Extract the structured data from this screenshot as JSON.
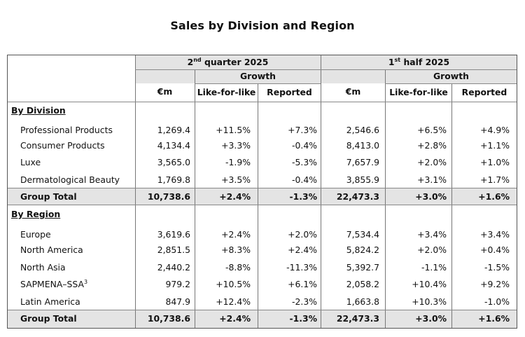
{
  "title": "Sales by Division and Region",
  "header": {
    "q2": {
      "pre": "2",
      "sup": "nd",
      "post": " quarter 2025"
    },
    "h1": {
      "pre": "1",
      "sup": "st",
      "post": " half 2025"
    },
    "growth": "Growth",
    "em": "€m",
    "lfl": "Like-for-like",
    "reported": "Reported"
  },
  "sections": [
    {
      "heading": "By Division",
      "rows": [
        {
          "label": "Professional Products",
          "v": [
            "1,269.4",
            "+11.5%",
            "+7.3%",
            "2,546.6",
            "+6.5%",
            "+4.9%"
          ]
        },
        {
          "label": "Consumer Products",
          "v": [
            "4,134.4",
            "+3.3%",
            "-0.4%",
            "8,413.0",
            "+2.8%",
            "+1.1%"
          ]
        },
        {
          "label": "Luxe",
          "v": [
            "3,565.0",
            "-1.9%",
            "-5.3%",
            "7,657.9",
            "+2.0%",
            "+1.0%"
          ]
        },
        {
          "label": "Dermatological Beauty",
          "v": [
            "1,769.8",
            "+3.5%",
            "-0.4%",
            "3,855.9",
            "+3.1%",
            "+1.7%"
          ]
        }
      ],
      "total": {
        "label": "Group Total",
        "v": [
          "10,738.6",
          "+2.4%",
          "-1.3%",
          "22,473.3",
          "+3.0%",
          "+1.6%"
        ]
      }
    },
    {
      "heading": "By Region",
      "rows": [
        {
          "label": "Europe",
          "v": [
            "3,619.6",
            "+2.4%",
            "+2.0%",
            "7,534.4",
            "+3.4%",
            "+3.4%"
          ]
        },
        {
          "label": "North America",
          "v": [
            "2,851.5",
            "+8.3%",
            "+2.4%",
            "5,824.2",
            "+2.0%",
            "+0.4%"
          ]
        },
        {
          "label": "North Asia",
          "v": [
            "2,440.2",
            "-8.8%",
            "-11.3%",
            "5,392.7",
            "-1.1%",
            "-1.5%"
          ]
        },
        {
          "label": "SAPMENA–SSA",
          "sup": "3",
          "v": [
            "979.2",
            "+10.5%",
            "+6.1%",
            "2,058.2",
            "+10.4%",
            "+9.2%"
          ]
        },
        {
          "label": "Latin America",
          "v": [
            "847.9",
            "+12.4%",
            "-2.3%",
            "1,663.8",
            "+10.3%",
            "-1.0%"
          ]
        }
      ],
      "total": {
        "label": "Group Total",
        "v": [
          "10,738.6",
          "+2.4%",
          "-1.3%",
          "22,473.3",
          "+3.0%",
          "+1.6%"
        ]
      }
    }
  ]
}
